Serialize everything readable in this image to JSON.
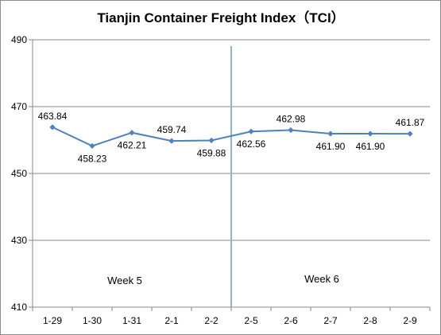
{
  "chart_data": {
    "type": "line",
    "title": "Tianjin Container Freight Index（TCI）",
    "categories": [
      "1-29",
      "1-30",
      "1-31",
      "2-1",
      "2-2",
      "2-5",
      "2-6",
      "2-7",
      "2-8",
      "2-9"
    ],
    "series": [
      {
        "values": [
          463.84,
          458.23,
          462.21,
          459.74,
          459.88,
          462.56,
          462.98,
          461.9,
          461.9,
          461.87
        ]
      }
    ],
    "data_labels": [
      "463.84",
      "458.23",
      "462.21",
      "459.74",
      "459.88",
      "462.56",
      "462.98",
      "461.90",
      "461.90",
      "461.87"
    ],
    "y_ticks": [
      "490",
      "470",
      "450",
      "430",
      "410"
    ],
    "ylim": [
      410,
      490
    ],
    "grid": true,
    "annotations": [
      "Week 5",
      "Week 6"
    ],
    "colors": {
      "line": "#4f81bd",
      "grid": "#878787",
      "separator": "#8eb4c9"
    }
  }
}
